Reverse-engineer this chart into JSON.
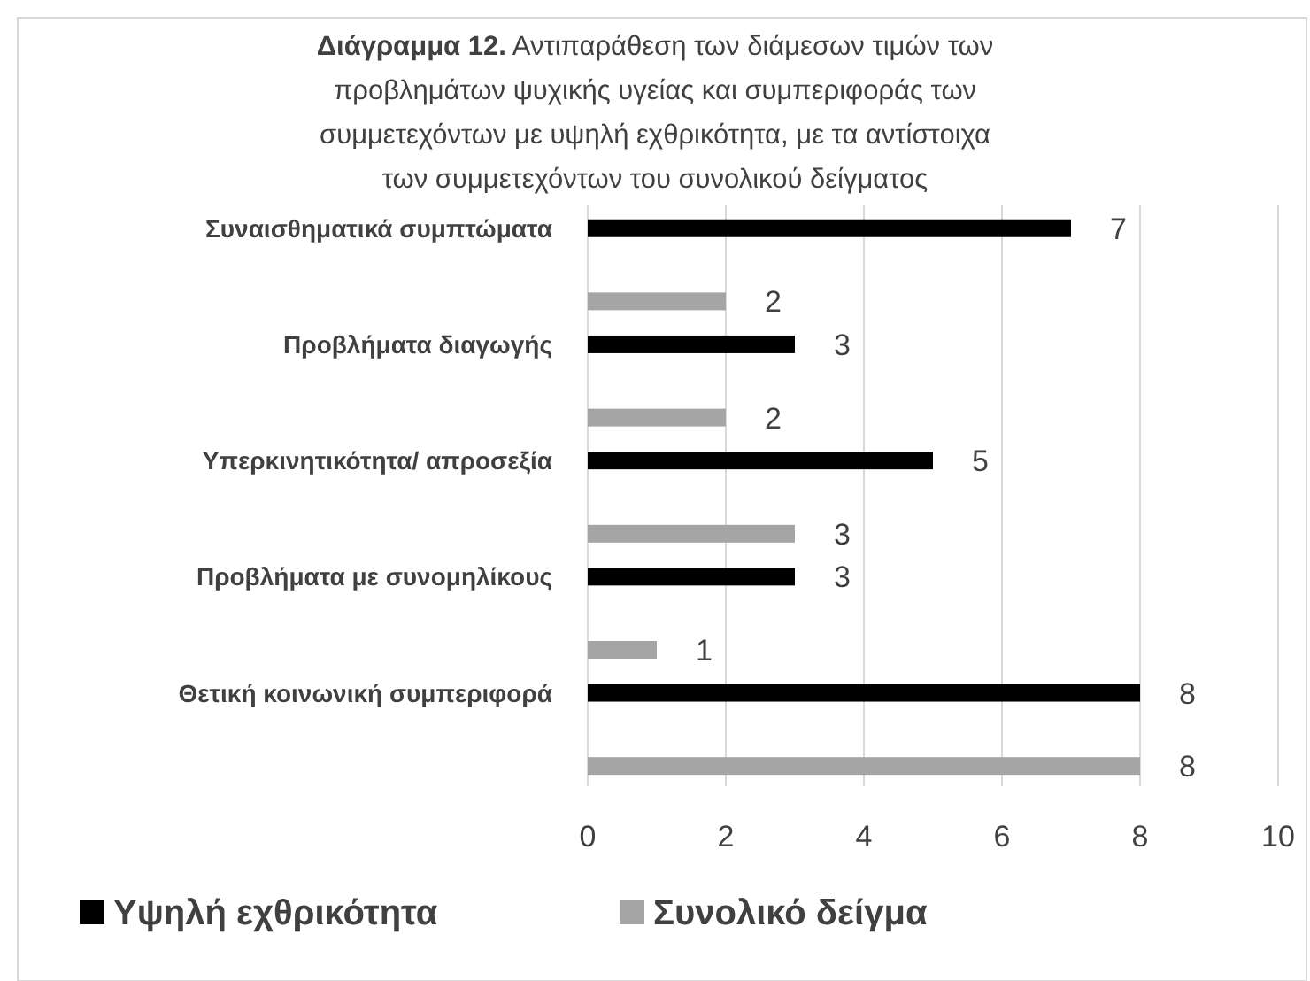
{
  "chart_data": {
    "type": "bar",
    "orientation": "horizontal",
    "title": "Διάγραμμα 12. Αντιπαράθεση των διάμεσων τιμών των προβλημάτων ψυχικής υγείας και συμπεριφοράς των συμμετεχόντων με υψηλή εχθρικότητα, με τα αντίστοιχα των συμμετεχόντων του συνολικού δείγματος",
    "categories": [
      "Συναισθηματικά συμπτώματα",
      "Προβλήματα διαγωγής",
      "Υπερκινητικότητα/  απροσεξία",
      "Προβλήματα με συνομηλίκους",
      "Θετική κοινωνική συμπεριφορά"
    ],
    "series": [
      {
        "name": "Υψηλή εχθρικότητα",
        "color": "#000000",
        "values": [
          7,
          3,
          5,
          3,
          8
        ]
      },
      {
        "name": "Συνολικό δείγμα",
        "color": "#a5a5a5",
        "values": [
          2,
          2,
          3,
          1,
          8
        ]
      }
    ],
    "xlim": [
      0,
      10
    ],
    "xticks": [
      0,
      2,
      4,
      6,
      8,
      10
    ],
    "grid": "x",
    "legend": "bottom",
    "data_labels": true
  }
}
